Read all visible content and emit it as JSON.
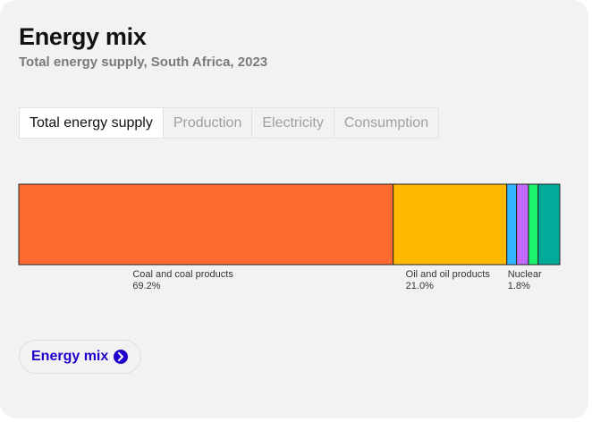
{
  "header": {
    "title": "Energy mix",
    "subtitle": "Total energy supply, South Africa, 2023"
  },
  "tabs": [
    {
      "label": "Total energy supply",
      "active": true
    },
    {
      "label": "Production",
      "active": false
    },
    {
      "label": "Electricity",
      "active": false
    },
    {
      "label": "Consumption",
      "active": false
    }
  ],
  "chart_data": {
    "type": "bar",
    "orientation": "horizontal-stacked-100",
    "total_percent": 100,
    "series": [
      {
        "name": "Coal and coal products",
        "value": 69.2,
        "value_label": "69.2%",
        "color": "#ff6a30",
        "labeled": true
      },
      {
        "name": "Oil and oil products",
        "value": 21.0,
        "value_label": "21.0%",
        "color": "#ffb800",
        "labeled": true
      },
      {
        "name": "Nuclear",
        "value": 1.8,
        "value_label": "1.8%",
        "color": "#33b5ff",
        "labeled": true
      },
      {
        "value": 2.2,
        "color": "#c46bff",
        "labeled": false
      },
      {
        "value": 1.8,
        "color": "#1cf26b",
        "labeled": false
      },
      {
        "value": 4.0,
        "color": "#00ab9c",
        "labeled": false
      }
    ]
  },
  "link": {
    "label": "Energy mix",
    "icon": "chevron-right-circle-icon",
    "color": "#2200cc"
  }
}
